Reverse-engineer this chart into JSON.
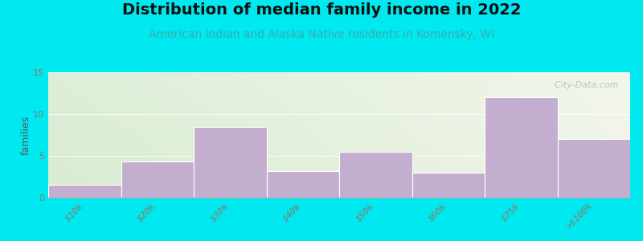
{
  "title": "Distribution of median family income in 2022",
  "subtitle": "American Indian and Alaska Native residents in Komensky, WI",
  "categories": [
    "$10k",
    "$20k",
    "$30k",
    "$40k",
    "$50k",
    "$60k",
    "$75k",
    ">$100k"
  ],
  "values": [
    1.5,
    4.3,
    8.5,
    3.2,
    5.5,
    3.0,
    12.0,
    7.0
  ],
  "bar_color": "#c4aed0",
  "bar_edgecolor": "#ffffff",
  "ylabel": "families",
  "ylim": [
    0,
    15
  ],
  "yticks": [
    0,
    5,
    10,
    15
  ],
  "background_outer": "#00e8f0",
  "title_fontsize": 14,
  "subtitle_fontsize": 10,
  "subtitle_color": "#3aacaa",
  "watermark_text": "  City-Data.com",
  "watermark_color": "#b0bcb8",
  "tick_label_color": "#887868",
  "tick_label_fontsize": 8,
  "ylabel_fontsize": 9,
  "ylabel_color": "#555555",
  "bg_left_color": "#d8ecd0",
  "bg_right_color": "#f0f4e8",
  "spine_color": "#aaaaaa"
}
